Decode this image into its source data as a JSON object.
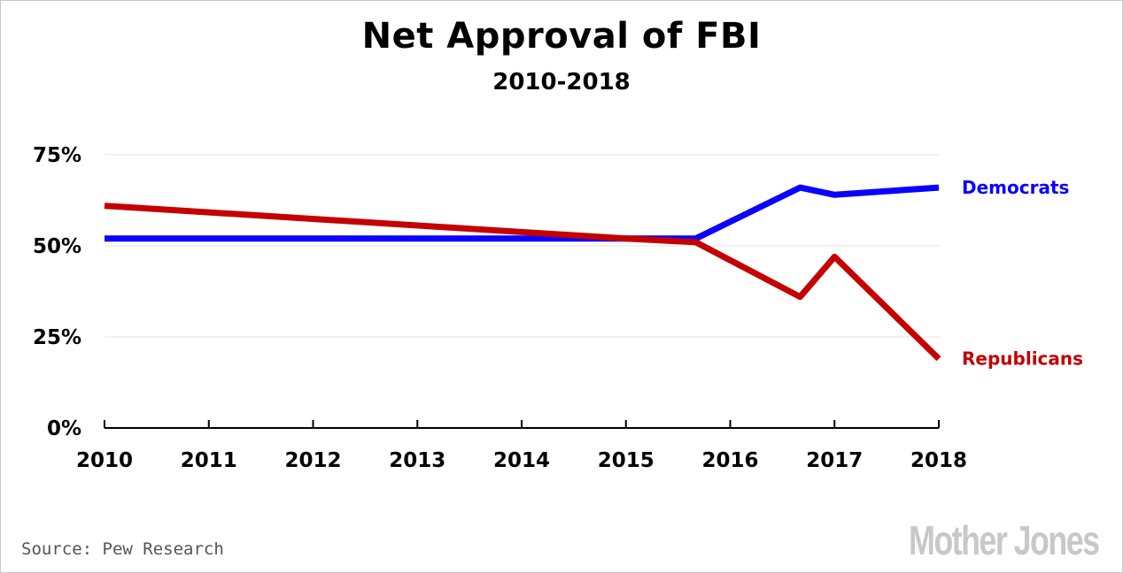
{
  "chart_data": {
    "type": "line",
    "title": "Net Approval of FBI",
    "subtitle": "2010-2018",
    "xlabel": "",
    "ylabel": "",
    "x_ticks": [
      "2010",
      "2011",
      "2012",
      "2013",
      "2014",
      "2015",
      "2016",
      "2017",
      "2018"
    ],
    "y_ticks": [
      "0%",
      "25%",
      "50%",
      "75%"
    ],
    "xlim": [
      2010,
      2018
    ],
    "ylim": [
      0,
      75
    ],
    "grid": "horizontal",
    "series": [
      {
        "name": "Democrats",
        "color": "#0a00ff",
        "points": [
          [
            2010,
            52
          ],
          [
            2015,
            52
          ],
          [
            2015.67,
            52
          ],
          [
            2016.67,
            66
          ],
          [
            2017,
            64
          ],
          [
            2018,
            66
          ]
        ]
      },
      {
        "name": "Republicans",
        "color": "#c40000",
        "points": [
          [
            2010,
            61
          ],
          [
            2015,
            52
          ],
          [
            2015.67,
            51
          ],
          [
            2016.67,
            36
          ],
          [
            2017,
            47
          ],
          [
            2018,
            19
          ]
        ]
      }
    ],
    "source": "Source: Pew Research",
    "logo": "Mother Jones"
  }
}
